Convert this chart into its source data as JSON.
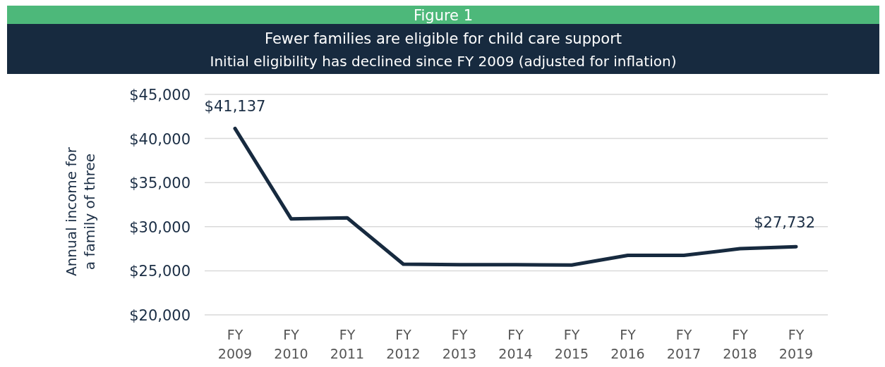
{
  "chart_data": {
    "type": "line",
    "title": "Fewer families are eligible for child care support",
    "subtitle": "Initial eligibility has declined since FY 2009 (adjusted for inflation)",
    "ylabel": "Annual income for a family of three",
    "categories": [
      "FY 2009",
      "FY 2010",
      "FY 2011",
      "FY 2012",
      "FY 2013",
      "FY 2014",
      "FY 2015",
      "FY 2016",
      "FY 2017",
      "FY 2018",
      "FY 2019"
    ],
    "series": [
      {
        "color": "#172a3f",
        "values": [
          41137,
          30890,
          31000,
          25750,
          25700,
          25700,
          25650,
          26750,
          26750,
          27500,
          27732
        ]
      }
    ],
    "ylim": [
      20000,
      45000
    ],
    "yticks": [
      {
        "value": 20000,
        "label": "$20,000"
      },
      {
        "value": 25000,
        "label": "$25,000"
      },
      {
        "value": 30000,
        "label": "$30,000"
      },
      {
        "value": 35000,
        "label": "$35,000"
      },
      {
        "value": 40000,
        "label": "$40,000"
      },
      {
        "value": 45000,
        "label": "$45,000"
      }
    ],
    "grid": "y",
    "marker": "none",
    "line_style": "solid",
    "annotations": [
      "Figure 1",
      {
        "text": "$41,137",
        "x": "FY 2009",
        "y": 41137
      },
      {
        "text": "$27,732",
        "x": "FY 2019",
        "y": 27732
      }
    ]
  }
}
